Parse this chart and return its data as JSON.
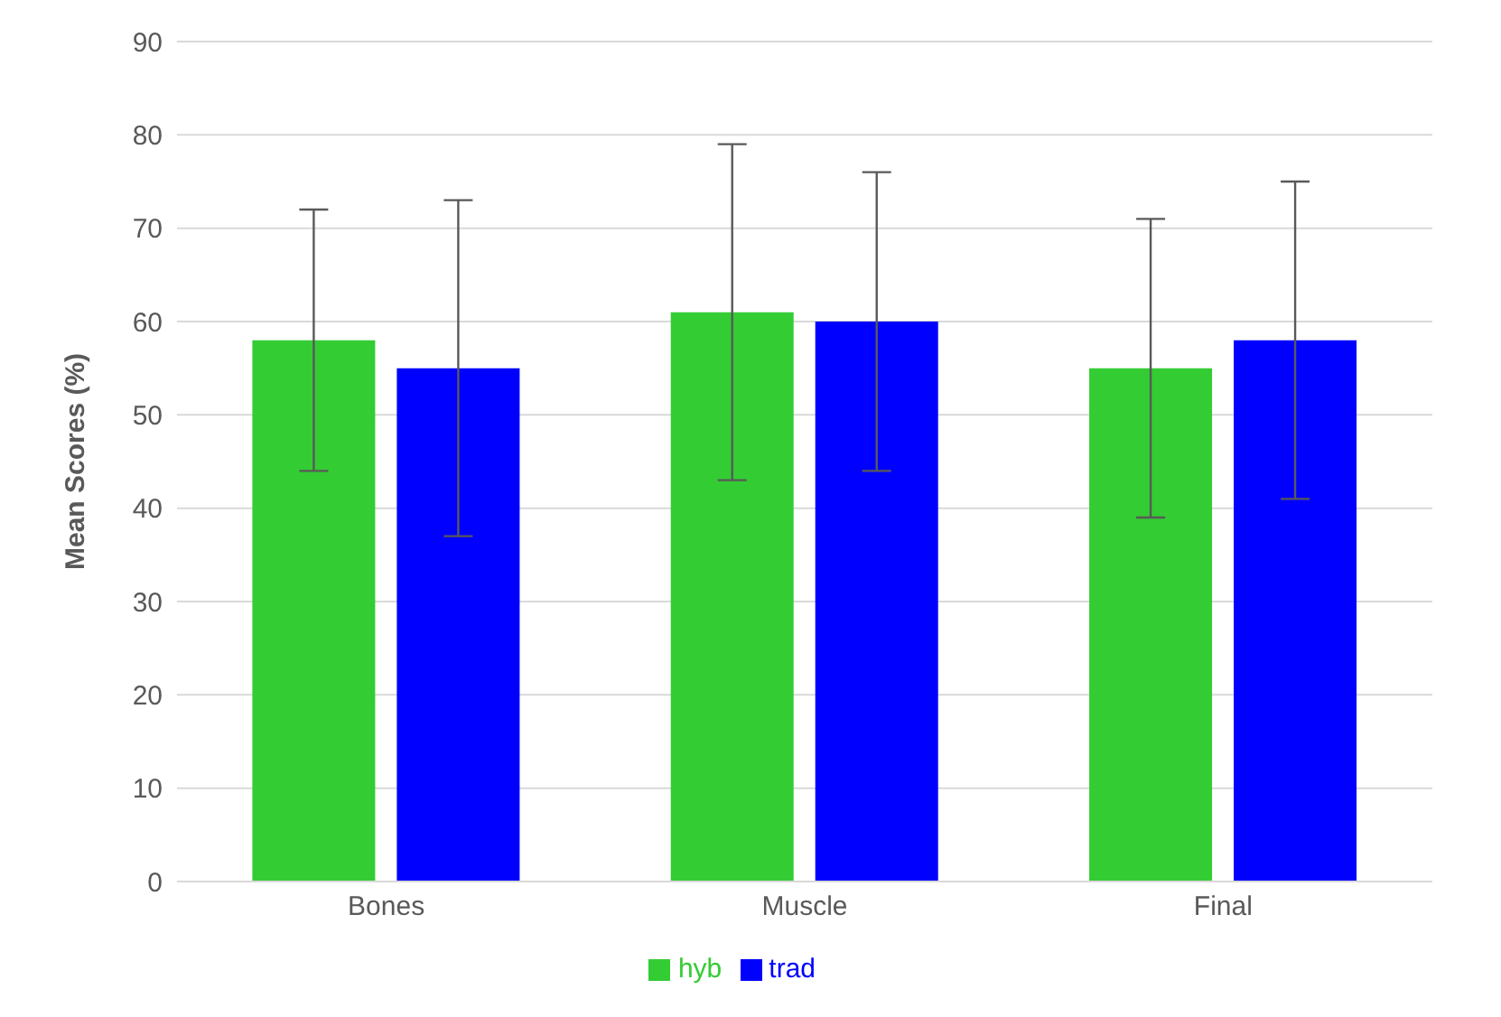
{
  "chart_data": {
    "type": "bar",
    "ylabel": "Mean Scores (%)",
    "categories": [
      "Bones",
      "Muscle",
      "Final"
    ],
    "series": [
      {
        "name": "hyb",
        "color": "#33cc33",
        "values": [
          58,
          61,
          55
        ],
        "errors": [
          14,
          18,
          16
        ]
      },
      {
        "name": "trad",
        "color": "#0000ff",
        "values": [
          55,
          60,
          58
        ],
        "errors": [
          18,
          16,
          17
        ]
      }
    ],
    "ylim": [
      0,
      90
    ],
    "yticks": [
      0,
      10,
      20,
      30,
      40,
      50,
      60,
      70,
      80,
      90
    ],
    "grid": "y",
    "legend": "bottom"
  }
}
